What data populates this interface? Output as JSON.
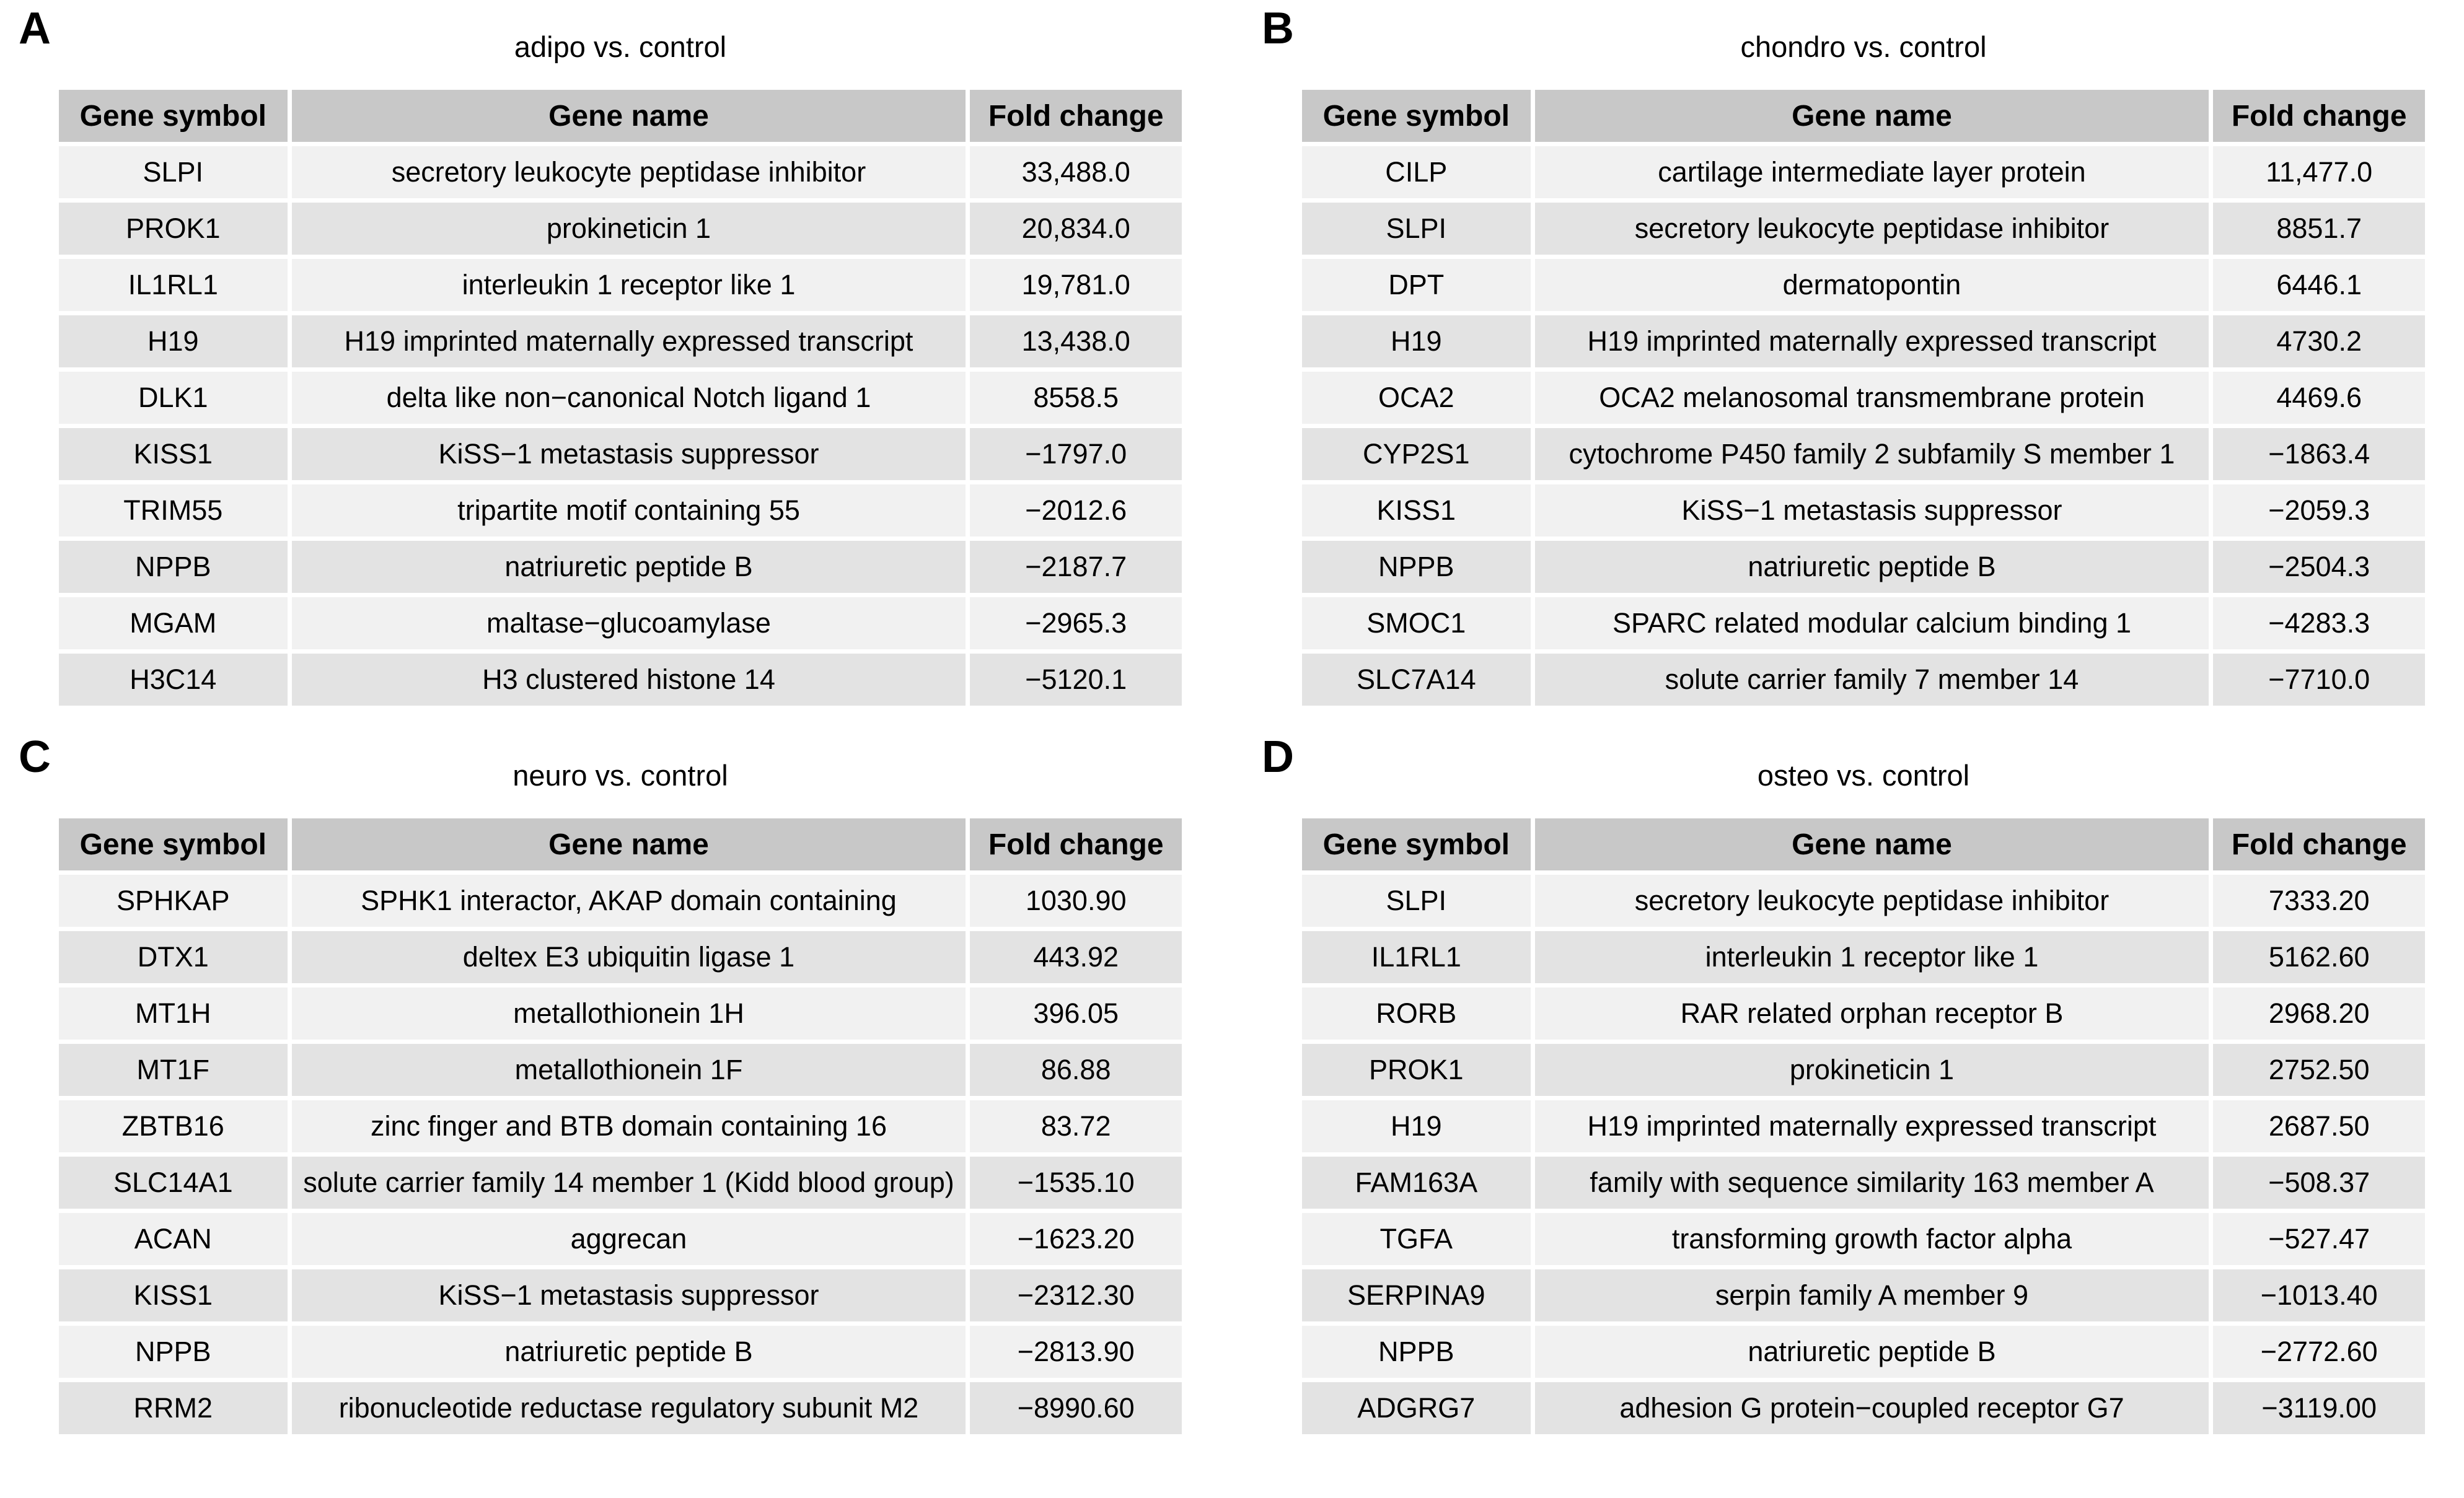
{
  "colors": {
    "background": "#ffffff",
    "header_bg": "#c8c8c8",
    "row_light": "#f1f1f1",
    "row_dark": "#e3e3e3",
    "text": "#000000"
  },
  "panels": [
    {
      "label": "A",
      "title": "adipo vs. control",
      "columns": [
        "Gene symbol",
        "Gene name",
        "Fold change"
      ],
      "rows": [
        [
          "SLPI",
          "secretory leukocyte peptidase inhibitor",
          "33,488.0"
        ],
        [
          "PROK1",
          "prokineticin 1",
          "20,834.0"
        ],
        [
          "IL1RL1",
          "interleukin 1 receptor like 1",
          "19,781.0"
        ],
        [
          "H19",
          "H19 imprinted maternally expressed transcript",
          "13,438.0"
        ],
        [
          "DLK1",
          "delta like non−canonical Notch ligand 1",
          "8558.5"
        ],
        [
          "KISS1",
          "KiSS−1 metastasis suppressor",
          "−1797.0"
        ],
        [
          "TRIM55",
          "tripartite motif containing 55",
          "−2012.6"
        ],
        [
          "NPPB",
          "natriuretic peptide B",
          "−2187.7"
        ],
        [
          "MGAM",
          "maltase−glucoamylase",
          "−2965.3"
        ],
        [
          "H3C14",
          "H3 clustered histone 14",
          "−5120.1"
        ]
      ]
    },
    {
      "label": "B",
      "title": "chondro vs. control",
      "columns": [
        "Gene symbol",
        "Gene name",
        "Fold change"
      ],
      "rows": [
        [
          "CILP",
          "cartilage intermediate layer protein",
          "11,477.0"
        ],
        [
          "SLPI",
          "secretory leukocyte peptidase inhibitor",
          "8851.7"
        ],
        [
          "DPT",
          "dermatopontin",
          "6446.1"
        ],
        [
          "H19",
          "H19 imprinted maternally expressed transcript",
          "4730.2"
        ],
        [
          "OCA2",
          "OCA2 melanosomal transmembrane protein",
          "4469.6"
        ],
        [
          "CYP2S1",
          "cytochrome P450 family 2 subfamily S member 1",
          "−1863.4"
        ],
        [
          "KISS1",
          "KiSS−1 metastasis suppressor",
          "−2059.3"
        ],
        [
          "NPPB",
          "natriuretic peptide B",
          "−2504.3"
        ],
        [
          "SMOC1",
          "SPARC related modular calcium binding 1",
          "−4283.3"
        ],
        [
          "SLC7A14",
          "solute carrier family 7 member 14",
          "−7710.0"
        ]
      ]
    },
    {
      "label": "C",
      "title": "neuro vs. control",
      "columns": [
        "Gene symbol",
        "Gene name",
        "Fold change"
      ],
      "rows": [
        [
          "SPHKAP",
          "SPHK1 interactor, AKAP domain containing",
          "1030.90"
        ],
        [
          "DTX1",
          "deltex E3 ubiquitin ligase 1",
          "443.92"
        ],
        [
          "MT1H",
          "metallothionein 1H",
          "396.05"
        ],
        [
          "MT1F",
          "metallothionein 1F",
          "86.88"
        ],
        [
          "ZBTB16",
          "zinc finger and BTB domain containing 16",
          "83.72"
        ],
        [
          "SLC14A1",
          "solute carrier family 14 member 1 (Kidd blood group)",
          "−1535.10"
        ],
        [
          "ACAN",
          "aggrecan",
          "−1623.20"
        ],
        [
          "KISS1",
          "KiSS−1 metastasis suppressor",
          "−2312.30"
        ],
        [
          "NPPB",
          "natriuretic peptide B",
          "−2813.90"
        ],
        [
          "RRM2",
          "ribonucleotide reductase regulatory subunit M2",
          "−8990.60"
        ]
      ]
    },
    {
      "label": "D",
      "title": "osteo vs. control",
      "columns": [
        "Gene symbol",
        "Gene name",
        "Fold change"
      ],
      "rows": [
        [
          "SLPI",
          "secretory leukocyte peptidase inhibitor",
          "7333.20"
        ],
        [
          "IL1RL1",
          "interleukin 1 receptor like 1",
          "5162.60"
        ],
        [
          "RORB",
          "RAR related orphan receptor B",
          "2968.20"
        ],
        [
          "PROK1",
          "prokineticin 1",
          "2752.50"
        ],
        [
          "H19",
          "H19 imprinted maternally expressed transcript",
          "2687.50"
        ],
        [
          "FAM163A",
          "family with sequence similarity 163 member A",
          "−508.37"
        ],
        [
          "TGFA",
          "transforming growth factor alpha",
          "−527.47"
        ],
        [
          "SERPINA9",
          "serpin family A member 9",
          "−1013.40"
        ],
        [
          "NPPB",
          "natriuretic peptide B",
          "−2772.60"
        ],
        [
          "ADGRG7",
          "adhesion G protein−coupled receptor G7",
          "−3119.00"
        ]
      ]
    }
  ]
}
